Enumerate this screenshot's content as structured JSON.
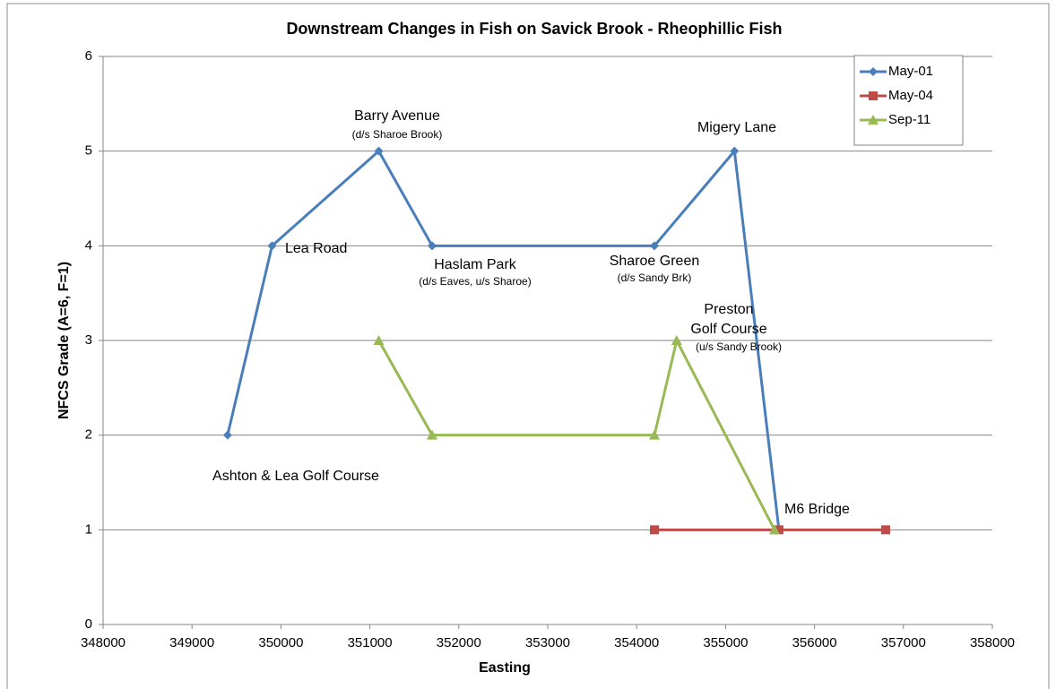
{
  "chart_data": {
    "type": "line",
    "title": "Downstream Changes in Fish on Savick Brook - Rheophillic Fish",
    "x_label": "Easting",
    "y_label": "NFCS Grade (A=6, F=1)",
    "xlim": [
      348000,
      358000
    ],
    "xticks": [
      348000,
      349000,
      350000,
      351000,
      352000,
      353000,
      354000,
      355000,
      356000,
      357000,
      358000
    ],
    "ylim": [
      0,
      6
    ],
    "yticks": [
      0,
      1,
      2,
      3,
      4,
      5,
      6
    ],
    "grid": true,
    "legend": "top-right",
    "series": [
      {
        "name": "May-01",
        "color": "#4a7ebb",
        "marker": "diamond",
        "x": [
          349400,
          349900,
          351100,
          351700,
          354200,
          355100,
          355600
        ],
        "values": [
          2,
          4,
          5,
          4,
          4,
          5,
          1
        ]
      },
      {
        "name": "May-04",
        "color": "#be4b48",
        "marker": "square",
        "x": [
          354200,
          355600,
          356800
        ],
        "values": [
          1,
          1,
          1
        ]
      },
      {
        "name": "Sep-11",
        "color": "#98b954",
        "marker": "triangle",
        "x": [
          351100,
          351700,
          354200,
          354450,
          355550
        ],
        "values": [
          3,
          2,
          2,
          3,
          1
        ]
      }
    ],
    "annotations": [
      "Barry Avenue",
      "(d/s Sharoe Brook)",
      "Lea Road",
      "Haslam Park",
      "(d/s Eaves, u/s Sharoe)",
      "Sharoe Green",
      "(d/s Sandy Brk)",
      "Migery Lane",
      "Preston",
      "Golf Course",
      "(u/s Sandy Brook)",
      "Ashton & Lea Golf Course",
      "M6 Bridge"
    ]
  }
}
